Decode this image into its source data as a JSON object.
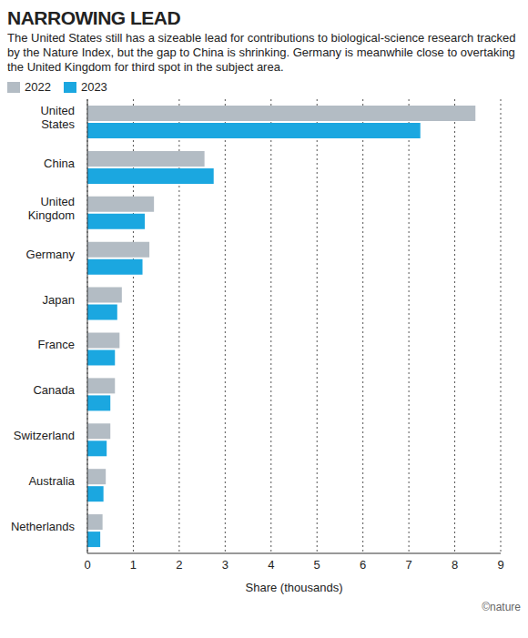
{
  "chart_data": {
    "type": "bar",
    "orientation": "horizontal",
    "title": "NARROWING LEAD",
    "subtitle": "The United States still has a sizeable lead for contributions to biological-science research tracked by the Nature Index, but the gap to China is shrinking. Germany is meanwhile close to overtaking the United Kingdom for third spot in the subject area.",
    "x_label": "Share (thousands)",
    "annotation": "©nature",
    "categories": [
      "United States",
      "China",
      "United Kingdom",
      "Germany",
      "Japan",
      "France",
      "Canada",
      "Switzerland",
      "Australia",
      "Netherlands"
    ],
    "series": [
      {
        "name": "2022",
        "color": "#b3bcc4",
        "values": [
          8.45,
          2.55,
          1.45,
          1.35,
          0.75,
          0.7,
          0.6,
          0.5,
          0.4,
          0.33
        ]
      },
      {
        "name": "2023",
        "color": "#1ba7e0",
        "values": [
          7.25,
          2.75,
          1.25,
          1.2,
          0.65,
          0.6,
          0.5,
          0.42,
          0.35,
          0.28
        ]
      }
    ],
    "xlim": [
      0,
      9
    ],
    "xticks": [
      0,
      1,
      2,
      3,
      4,
      5,
      6,
      7,
      8,
      9
    ],
    "grid": true,
    "legend": "top-left",
    "data_labels": false
  }
}
